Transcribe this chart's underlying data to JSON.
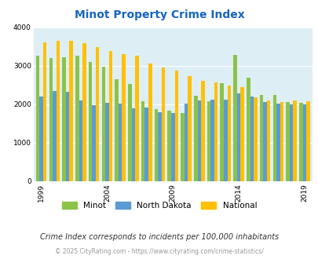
{
  "title": "Minot Property Crime Index",
  "years": [
    1999,
    2000,
    2001,
    2002,
    2003,
    2004,
    2005,
    2006,
    2007,
    2008,
    2009,
    2010,
    2011,
    2012,
    2013,
    2014,
    2015,
    2016,
    2017,
    2018,
    2019
  ],
  "minot": [
    3250,
    3200,
    3220,
    3250,
    3100,
    2980,
    2640,
    2530,
    2080,
    1870,
    1840,
    1770,
    2220,
    2080,
    2540,
    3270,
    2680,
    2240,
    2250,
    2050,
    2030
  ],
  "north_dakota": [
    2200,
    2350,
    2320,
    2100,
    1980,
    2030,
    2010,
    1900,
    1920,
    1790,
    1780,
    2010,
    2090,
    2110,
    2110,
    2290,
    2190,
    2060,
    2010,
    1990,
    2000
  ],
  "national": [
    3610,
    3650,
    3640,
    3580,
    3490,
    3380,
    3300,
    3260,
    3060,
    2960,
    2880,
    2740,
    2610,
    2560,
    2490,
    2440,
    2180,
    2100,
    2060,
    2100,
    2080
  ],
  "minot_color": "#8bc34a",
  "nd_color": "#5b9bd5",
  "national_color": "#ffc000",
  "bg_color": "#deeef5",
  "title_color": "#1565c0",
  "ylabel_max": 4000,
  "yticks": [
    0,
    1000,
    2000,
    3000,
    4000
  ],
  "xlabel_ticks": [
    1999,
    2004,
    2009,
    2014,
    2019
  ],
  "footnote": "Crime Index corresponds to incidents per 100,000 inhabitants",
  "copyright": "© 2025 CityRating.com - https://www.cityrating.com/crime-statistics/"
}
